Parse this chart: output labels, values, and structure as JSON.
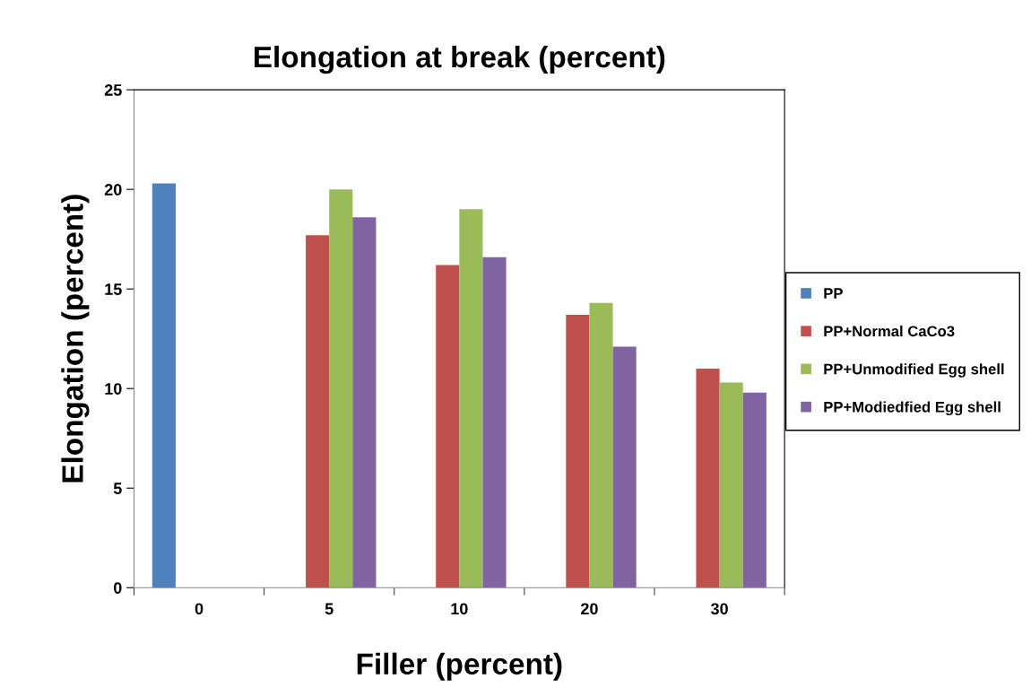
{
  "chart_data": {
    "type": "bar",
    "title": "Elongation at break (percent)",
    "xlabel": "Filler (percent)",
    "ylabel": "Elongation (percent)",
    "categories": [
      "0",
      "5",
      "10",
      "20",
      "30"
    ],
    "series": [
      {
        "name": "PP",
        "color": "#4f81bd",
        "values": [
          20.3,
          null,
          null,
          null,
          null
        ]
      },
      {
        "name": "PP+Normal CaCo3",
        "color": "#c0504d",
        "values": [
          null,
          17.7,
          16.2,
          13.7,
          11.0
        ]
      },
      {
        "name": "PP+Unmodified Egg shell",
        "color": "#9bbb59",
        "values": [
          null,
          20.0,
          19.0,
          14.3,
          10.3
        ]
      },
      {
        "name": "PP+Modiedfied Egg shell",
        "color": "#8064a2",
        "values": [
          null,
          18.6,
          16.6,
          12.1,
          9.8
        ]
      }
    ],
    "ylim": [
      0,
      25
    ],
    "yticks": [
      0,
      5,
      10,
      15,
      20,
      25
    ],
    "grid": false,
    "legend": "right"
  }
}
